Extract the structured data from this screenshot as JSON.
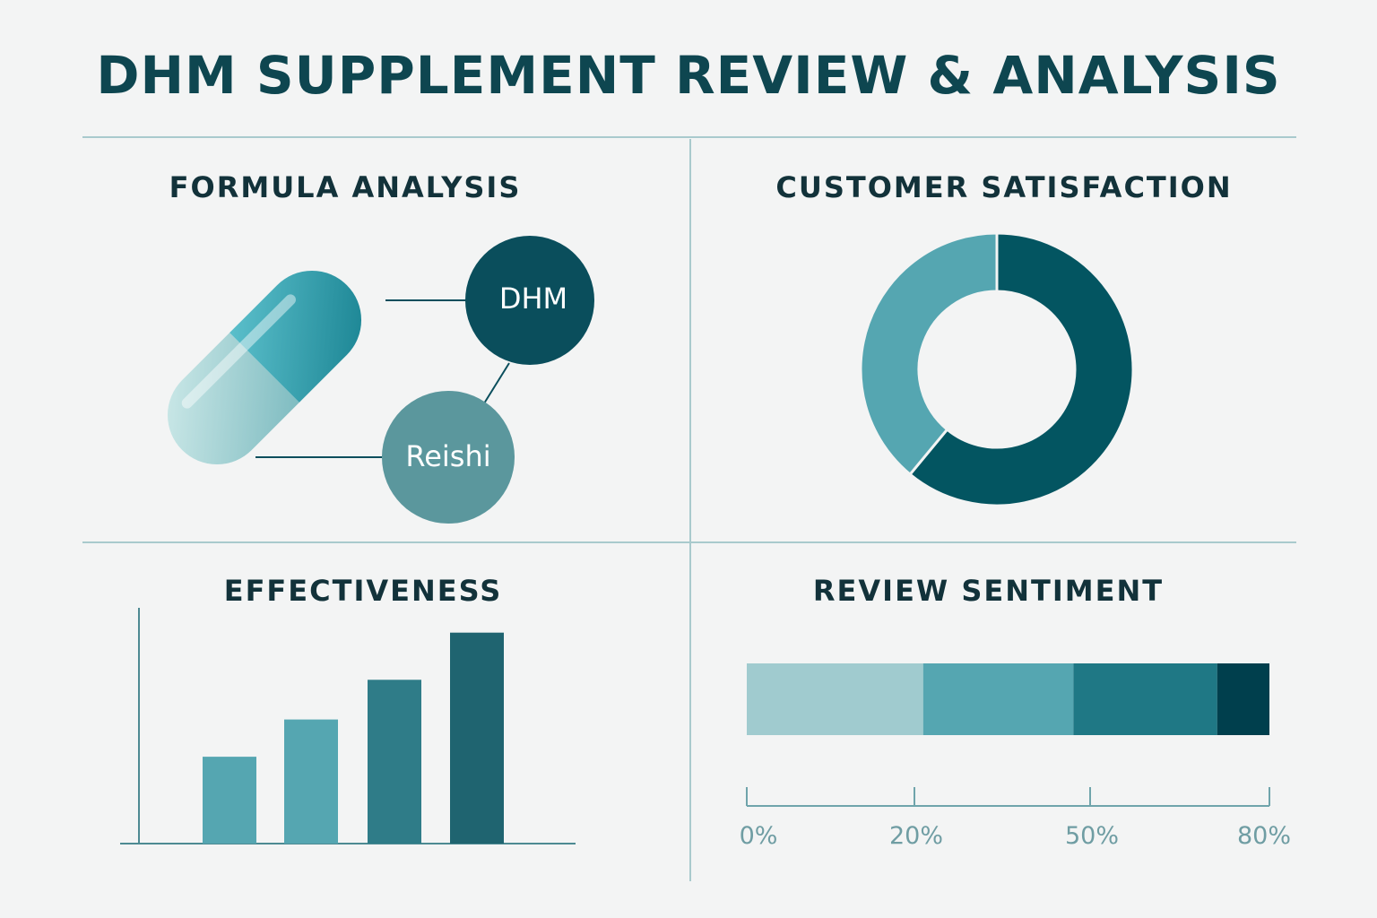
{
  "title": "DHM SUPPLEMENT REVIEW & ANALYSIS",
  "colors": {
    "title": "#0e4650",
    "divider": "#a9cacd",
    "dark_teal": "#035561",
    "mid_teal": "#55a6b1",
    "light_teal": "#a0cbcf",
    "navy_teal": "#003f4d"
  },
  "formula": {
    "title": "FORMULA ANALYSIS",
    "icon": "capsule-icon",
    "nodes": [
      {
        "label": "DHM",
        "color": "#0a4e5c"
      },
      {
        "label": "Reishi",
        "color": "#5b979d"
      }
    ]
  },
  "chart_data": [
    {
      "type": "pie",
      "title": "CUSTOMER SATISFACTION",
      "donut": true,
      "slices": [
        {
          "value": 61,
          "color": "#035561"
        },
        {
          "value": 39,
          "color": "#55a6b1"
        }
      ]
    },
    {
      "type": "bar",
      "title": "EFFECTIVENESS",
      "values": [
        3.5,
        5.0,
        6.6,
        8.5
      ],
      "ylim": [
        0,
        9.5
      ],
      "colors": [
        "#55a6b1",
        "#55a6b1",
        "#2f7c88",
        "#1f6470"
      ]
    },
    {
      "type": "bar",
      "title": "REVIEW SENTIMENT",
      "orientation": "horizontal-stacked",
      "segments": [
        {
          "value": 27,
          "color": "#a0cbcf"
        },
        {
          "value": 23,
          "color": "#55a6b1"
        },
        {
          "value": 22,
          "color": "#1f7885"
        },
        {
          "value": 8,
          "color": "#003f4d"
        }
      ],
      "ticks": [
        "0%",
        "20%",
        "50%",
        "80%"
      ]
    }
  ]
}
